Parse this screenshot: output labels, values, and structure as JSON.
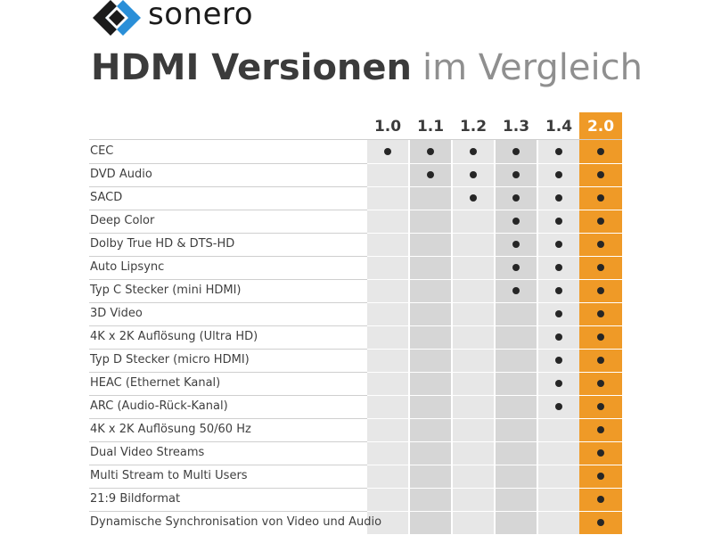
{
  "brand": {
    "name": "sonero",
    "logo_icon": "sonero-diamond-logo-icon",
    "accent": "#ef9a27",
    "logo_blue": "#2a8fd8"
  },
  "title": {
    "bold": "HDMI Versionen",
    "light": "im Vergleich"
  },
  "versions": [
    "1.0",
    "1.1",
    "1.2",
    "1.3",
    "1.4",
    "2.0"
  ],
  "features": [
    {
      "label": "CEC",
      "support": [
        true,
        true,
        true,
        true,
        true,
        true
      ]
    },
    {
      "label": "DVD Audio",
      "support": [
        false,
        true,
        true,
        true,
        true,
        true
      ]
    },
    {
      "label": "SACD",
      "support": [
        false,
        false,
        true,
        true,
        true,
        true
      ]
    },
    {
      "label": "Deep Color",
      "support": [
        false,
        false,
        false,
        true,
        true,
        true
      ]
    },
    {
      "label": "Dolby True HD & DTS-HD",
      "support": [
        false,
        false,
        false,
        true,
        true,
        true
      ]
    },
    {
      "label": "Auto Lipsync",
      "support": [
        false,
        false,
        false,
        true,
        true,
        true
      ]
    },
    {
      "label": "Typ C Stecker (mini HDMI)",
      "support": [
        false,
        false,
        false,
        true,
        true,
        true
      ]
    },
    {
      "label": "3D Video",
      "support": [
        false,
        false,
        false,
        false,
        true,
        true
      ]
    },
    {
      "label": "4K x 2K Auflösung (Ultra HD)",
      "support": [
        false,
        false,
        false,
        false,
        true,
        true
      ]
    },
    {
      "label": "Typ D Stecker (micro HDMI)",
      "support": [
        false,
        false,
        false,
        false,
        true,
        true
      ]
    },
    {
      "label": "HEAC (Ethernet Kanal)",
      "support": [
        false,
        false,
        false,
        false,
        true,
        true
      ]
    },
    {
      "label": "ARC (Audio-Rück-Kanal)",
      "support": [
        false,
        false,
        false,
        false,
        true,
        true
      ]
    },
    {
      "label": "4K x 2K Auflösung 50/60 Hz",
      "support": [
        false,
        false,
        false,
        false,
        false,
        true
      ]
    },
    {
      "label": "Dual Video Streams",
      "support": [
        false,
        false,
        false,
        false,
        false,
        true
      ]
    },
    {
      "label": "Multi Stream to Multi Users",
      "support": [
        false,
        false,
        false,
        false,
        false,
        true
      ]
    },
    {
      "label": "21:9 Bildformat",
      "support": [
        false,
        false,
        false,
        false,
        false,
        true
      ]
    },
    {
      "label": "Dynamische Synchronisation von Video und Audio",
      "support": [
        false,
        false,
        false,
        false,
        false,
        true
      ]
    }
  ]
}
